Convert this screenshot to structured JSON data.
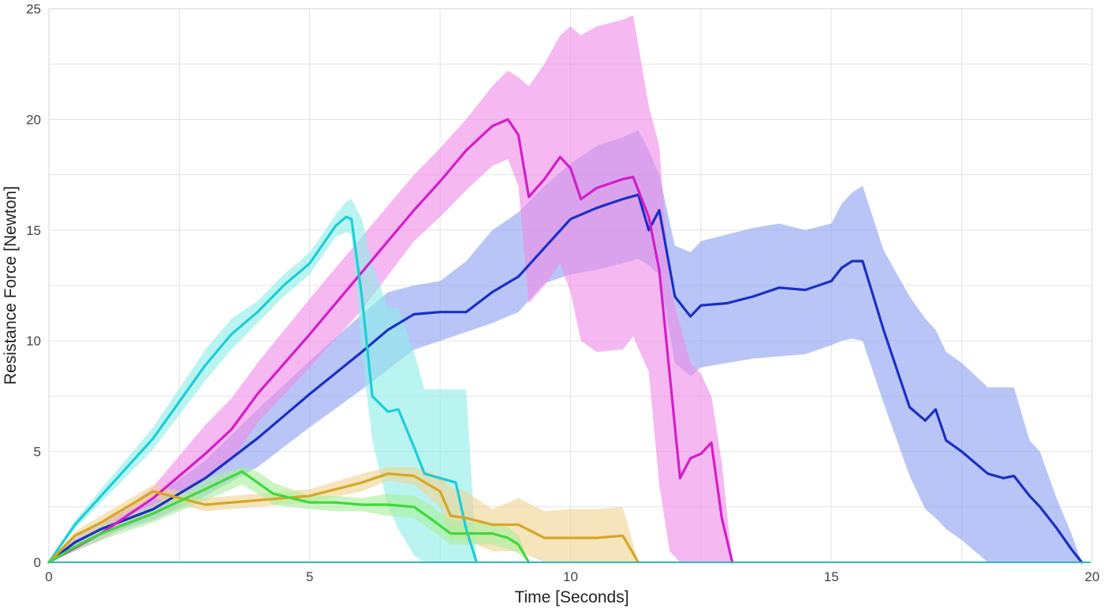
{
  "chart_data": {
    "type": "line",
    "xlabel": "Time [Seconds]",
    "ylabel": "Resistance Force [Newton]",
    "xlim": [
      0,
      20
    ],
    "ylim": [
      0,
      25
    ],
    "x_ticks": [
      0,
      5,
      10,
      15,
      20
    ],
    "y_ticks": [
      0,
      5,
      10,
      15,
      20,
      25
    ],
    "grid": true,
    "legend": "none",
    "series": [
      {
        "color": "#3aa0e8",
        "band_color": "#8ea1f0",
        "x": [
          0,
          0.5,
          1,
          2,
          3,
          4,
          5,
          6,
          6.5,
          7,
          7.5,
          8,
          8.5,
          9,
          9.5,
          10,
          10.5,
          11,
          11.3,
          11.5,
          11.7,
          12,
          12.3,
          12.5,
          13,
          13.5,
          14,
          14.5,
          15,
          15.2,
          15.4,
          15.6,
          16,
          16.5,
          16.8,
          17,
          17.2,
          17.5,
          18,
          18.3,
          18.5,
          18.8,
          19,
          19.3,
          19.6,
          19.8
        ],
        "values": [
          0,
          0.9,
          1.5,
          2.4,
          3.8,
          5.6,
          7.6,
          9.5,
          10.5,
          11.2,
          11.3,
          11.3,
          12.2,
          12.9,
          14.2,
          15.5,
          16.0,
          16.4,
          16.6,
          15.0,
          15.9,
          12.0,
          11.1,
          11.6,
          11.7,
          12.0,
          12.4,
          12.3,
          12.7,
          13.3,
          13.6,
          13.6,
          10.5,
          7.0,
          6.4,
          6.9,
          5.5,
          5.0,
          4.0,
          3.8,
          3.9,
          3.0,
          2.5,
          1.6,
          0.6,
          0
        ],
        "upper": [
          0,
          1.1,
          1.8,
          2.9,
          4.6,
          6.9,
          9.1,
          11.2,
          12.2,
          12.5,
          12.7,
          13.6,
          15.0,
          15.8,
          17.0,
          18.0,
          18.8,
          19.2,
          19.5,
          18.6,
          17.5,
          14.3,
          14.0,
          14.5,
          14.8,
          15.1,
          15.3,
          15.0,
          15.3,
          16.2,
          16.7,
          17.0,
          14.1,
          12.0,
          11.0,
          10.5,
          9.5,
          9.0,
          7.9,
          7.9,
          7.9,
          5.5,
          5.0,
          3.0,
          1.3,
          0
        ],
        "lower": [
          0,
          0.6,
          1.2,
          1.9,
          3.0,
          4.3,
          6.1,
          7.8,
          8.7,
          9.6,
          10.0,
          10.4,
          10.8,
          11.3,
          12.6,
          13.0,
          13.2,
          13.5,
          13.7,
          13.4,
          13.0,
          9.0,
          8.4,
          8.8,
          9.0,
          9.2,
          9.3,
          9.4,
          9.8,
          10.0,
          10.1,
          10.0,
          7.2,
          3.9,
          2.4,
          2.0,
          1.5,
          1.0,
          0.0,
          0.0,
          0.0,
          0.0,
          0.0,
          0.0,
          0.0,
          0
        ]
      },
      {
        "color": "#d21ec8",
        "band_color": "#ef8ce6",
        "x": [
          0,
          1,
          2,
          3,
          3.5,
          4,
          5,
          6,
          7,
          7.5,
          8,
          8.5,
          8.8,
          9,
          9.2,
          9.5,
          9.8,
          10,
          10.2,
          10.5,
          11,
          11.2,
          11.5,
          11.7,
          11.9,
          12.1,
          12.3,
          12.5,
          12.7,
          12.9,
          13.1
        ],
        "values": [
          0,
          1.3,
          2.9,
          4.9,
          6.0,
          7.6,
          10.3,
          13.1,
          15.9,
          17.2,
          18.6,
          19.7,
          20.0,
          19.3,
          16.5,
          17.3,
          18.3,
          17.8,
          16.4,
          16.9,
          17.3,
          17.4,
          15.6,
          13.2,
          8.5,
          3.8,
          4.7,
          4.9,
          5.4,
          2.0,
          0
        ],
        "upper": [
          0,
          1.6,
          3.4,
          6.2,
          7.4,
          9.0,
          11.9,
          14.7,
          17.5,
          18.7,
          20.0,
          21.5,
          22.2,
          21.9,
          21.5,
          22.5,
          23.8,
          24.2,
          23.8,
          24.2,
          24.5,
          24.7,
          20.6,
          18.8,
          12.5,
          10.7,
          9.0,
          8.5,
          7.5,
          4.5,
          0
        ],
        "lower": [
          0,
          1.0,
          2.2,
          3.7,
          4.6,
          6.3,
          8.8,
          11.4,
          14.5,
          15.6,
          16.8,
          17.9,
          18.2,
          17.0,
          11.7,
          12.5,
          13.5,
          12.2,
          10.0,
          9.5,
          9.6,
          10.2,
          8.6,
          3.5,
          0.5,
          0.0,
          0.0,
          0.0,
          0.0,
          0.0,
          0
        ]
      },
      {
        "color": "#1ccdd8",
        "band_color": "#8fede9",
        "x": [
          0,
          0.5,
          1,
          2,
          3,
          3.5,
          4,
          4.5,
          5,
          5.5,
          5.7,
          5.8,
          6.0,
          6.2,
          6.5,
          6.7,
          7,
          7.2,
          7.5,
          7.8,
          8.0,
          8.2
        ],
        "values": [
          0,
          1.7,
          3.0,
          5.6,
          8.9,
          10.3,
          11.3,
          12.5,
          13.5,
          15.2,
          15.6,
          15.5,
          12.0,
          7.5,
          6.8,
          6.9,
          5.2,
          4.0,
          3.8,
          3.6,
          1.5,
          0
        ],
        "upper": [
          0,
          1.9,
          3.3,
          6.1,
          9.6,
          11.0,
          11.8,
          13.0,
          14.0,
          15.7,
          16.3,
          16.4,
          15.5,
          13.5,
          11.5,
          11.5,
          9.5,
          7.8,
          7.8,
          7.8,
          7.8,
          0
        ],
        "lower": [
          0,
          1.5,
          2.7,
          5.1,
          8.2,
          9.6,
          10.8,
          12.0,
          13.0,
          14.7,
          14.9,
          14.8,
          9.5,
          5.5,
          2.5,
          1.5,
          0.3,
          0.0,
          0.0,
          0.0,
          0.0,
          0
        ]
      },
      {
        "color": "#d6a624",
        "band_color": "#f1d494",
        "x": [
          0,
          0.5,
          1,
          2,
          3,
          4,
          5,
          6,
          6.5,
          7,
          7.5,
          7.7,
          8,
          8.5,
          9,
          9.5,
          10,
          10.5,
          11,
          11.3
        ],
        "values": [
          0,
          1.2,
          1.8,
          3.2,
          2.6,
          2.8,
          3.0,
          3.6,
          4.0,
          3.9,
          3.2,
          2.1,
          2.0,
          1.7,
          1.7,
          1.1,
          1.1,
          1.1,
          1.2,
          0
        ],
        "upper": [
          0,
          1.4,
          2.1,
          3.5,
          2.9,
          3.1,
          3.3,
          4.0,
          4.3,
          4.3,
          3.9,
          3.4,
          3.2,
          2.4,
          2.9,
          2.3,
          2.4,
          2.4,
          2.5,
          0
        ],
        "lower": [
          0,
          1.0,
          1.5,
          2.9,
          2.3,
          2.5,
          2.7,
          3.2,
          3.7,
          3.5,
          2.5,
          1.1,
          1.0,
          0.5,
          0.5,
          0.0,
          0.0,
          0.0,
          0.0,
          0
        ]
      },
      {
        "color": "#3dd93c",
        "band_color": "#a9ef9d",
        "x": [
          0,
          0.5,
          1,
          2,
          3,
          3.7,
          4,
          4.3,
          5,
          5.5,
          6,
          6.5,
          7,
          7.3,
          7.7,
          8,
          8.5,
          8.8,
          9.0,
          9.2
        ],
        "values": [
          0,
          0.7,
          1.3,
          2.2,
          3.3,
          4.1,
          3.6,
          3.1,
          2.7,
          2.7,
          2.6,
          2.6,
          2.5,
          2.0,
          1.3,
          1.3,
          1.3,
          1.1,
          0.8,
          0
        ],
        "upper": [
          0,
          0.9,
          1.6,
          2.6,
          3.8,
          4.3,
          4.1,
          3.6,
          3.0,
          3.0,
          2.9,
          3.1,
          3.0,
          2.6,
          1.9,
          1.8,
          1.8,
          1.6,
          1.2,
          0
        ],
        "lower": [
          0,
          0.5,
          1.0,
          1.8,
          2.8,
          3.5,
          3.1,
          2.6,
          2.4,
          2.3,
          2.3,
          2.1,
          2.0,
          1.5,
          0.8,
          0.8,
          0.8,
          0.6,
          0.4,
          0
        ]
      }
    ]
  }
}
